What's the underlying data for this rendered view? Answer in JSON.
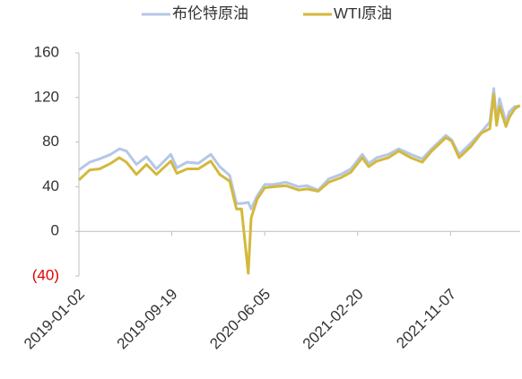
{
  "chart_data": {
    "type": "line",
    "x": [
      "2019-01-02",
      "2019-02-01",
      "2019-03-01",
      "2019-04-01",
      "2019-04-25",
      "2019-05-15",
      "2019-06-12",
      "2019-07-10",
      "2019-08-07",
      "2019-09-16",
      "2019-10-03",
      "2019-11-01",
      "2019-12-02",
      "2020-01-06",
      "2020-01-31",
      "2020-02-28",
      "2020-03-18",
      "2020-04-01",
      "2020-04-20",
      "2020-04-28",
      "2020-05-15",
      "2020-06-05",
      "2020-07-01",
      "2020-08-03",
      "2020-09-08",
      "2020-10-01",
      "2020-11-02",
      "2020-12-01",
      "2021-01-04",
      "2021-02-01",
      "2021-03-05",
      "2021-03-23",
      "2021-04-15",
      "2021-05-17",
      "2021-06-15",
      "2021-07-19",
      "2021-08-20",
      "2021-09-15",
      "2021-10-25",
      "2021-11-10",
      "2021-12-01",
      "2022-01-03",
      "2022-02-01",
      "2022-02-25",
      "2022-03-08",
      "2022-03-16",
      "2022-03-24",
      "2022-04-11",
      "2022-04-20",
      "2022-05-06",
      "2022-05-20"
    ],
    "series": [
      {
        "name": "布伦特原油",
        "color": "#b4c7e7",
        "values": [
          55,
          62,
          65,
          69,
          74,
          72,
          60,
          67,
          56,
          69,
          57,
          62,
          61,
          69,
          58,
          50,
          25,
          25,
          26,
          20,
          32,
          42,
          42,
          44,
          40,
          41,
          37,
          47,
          51,
          56,
          69,
          61,
          66,
          69,
          74,
          69,
          65,
          74,
          86,
          82,
          69,
          79,
          89,
          98,
          128,
          98,
          119,
          98,
          107,
          112,
          112
        ]
      },
      {
        "name": "WTI原油",
        "color": "#d4b83c",
        "values": [
          46,
          55,
          56,
          61,
          66,
          62,
          51,
          60,
          51,
          63,
          52,
          56,
          56,
          63,
          51,
          45,
          20,
          20,
          -37.6,
          12,
          29,
          39,
          40,
          41,
          37,
          38,
          36,
          44,
          48,
          53,
          66,
          58,
          63,
          66,
          72,
          66,
          62,
          72,
          84,
          81,
          66,
          76,
          88,
          92,
          123,
          95,
          112,
          94,
          102,
          110,
          113
        ]
      }
    ],
    "xlim": [
      "2019-01-02",
      "2022-05-21"
    ],
    "xticks": [
      "2019-01-02",
      "2019-09-19",
      "2020-06-05",
      "2021-02-20",
      "2021-11-07"
    ],
    "ylim": [
      -40,
      160
    ],
    "yticks": [
      {
        "value": -40,
        "label": "(40)",
        "color": "#e00000"
      },
      0,
      40,
      80,
      120,
      160
    ],
    "legend": "top"
  }
}
